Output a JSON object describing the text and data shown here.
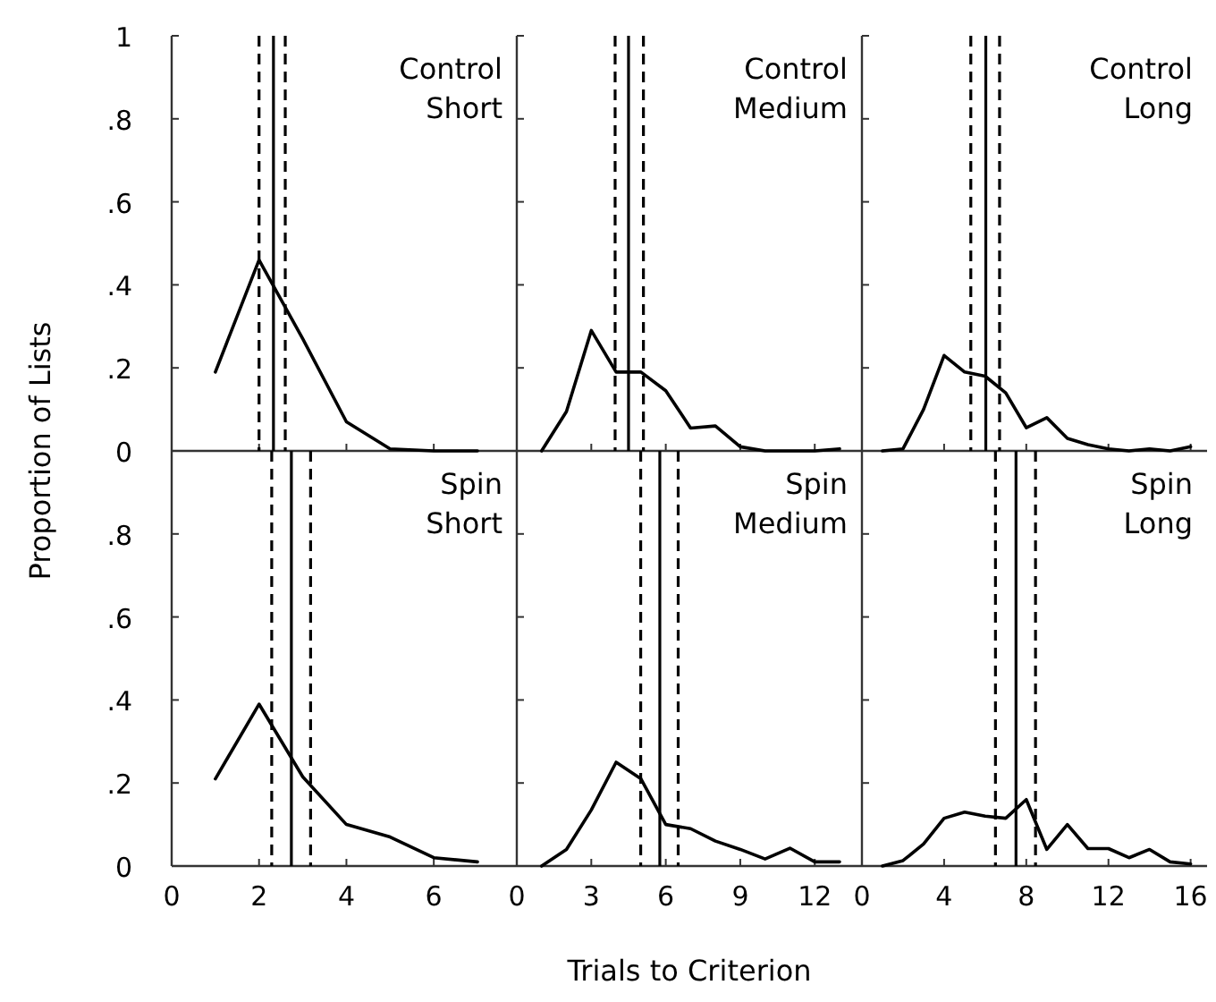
{
  "chart_data": [
    {
      "type": "line",
      "title": "Control",
      "subtitle": "Short",
      "x": [
        1,
        2,
        3,
        4,
        5,
        6,
        7
      ],
      "series": [
        {
          "color": "#000000",
          "values": [
            0.19,
            0.46,
            0.27,
            0.07,
            0.005,
            0,
            0
          ]
        }
      ],
      "xlim": [
        0,
        7.9
      ],
      "xticks": [
        {
          "value": 0,
          "label": null
        },
        {
          "value": 2,
          "label": null
        },
        {
          "value": 4,
          "label": null
        },
        {
          "value": 6,
          "label": null
        }
      ],
      "ylim": [
        0,
        1
      ],
      "yticks": [
        {
          "value": 0,
          "label": "0"
        },
        {
          "value": 0.2,
          "label": ".2"
        },
        {
          "value": 0.4,
          "label": ".4"
        },
        {
          "value": 0.6,
          "label": ".6"
        },
        {
          "value": 0.8,
          "label": ".8"
        },
        1
      ],
      "tick_labels": "y",
      "marker": "none",
      "line_style": "solid",
      "ref_lines": [
        {
          "axis": "x",
          "value": 2.0,
          "line_style": "dashed",
          "color": "#000000"
        },
        {
          "axis": "x",
          "value": 2.33,
          "line_style": "solid",
          "color": "#000000"
        },
        {
          "axis": "x",
          "value": 2.6,
          "line_style": "dashed",
          "color": "#000000"
        }
      ]
    },
    {
      "type": "line",
      "title": "Control",
      "subtitle": "Medium",
      "x": [
        1,
        2,
        3,
        4,
        5,
        6,
        7,
        8,
        9,
        10,
        11,
        12,
        13
      ],
      "series": [
        {
          "color": "#000000",
          "values": [
            0,
            0.095,
            0.29,
            0.19,
            0.19,
            0.145,
            0.055,
            0.06,
            0.01,
            0,
            0,
            0,
            0.005
          ]
        }
      ],
      "xlim": [
        0,
        13.9
      ],
      "xticks": [
        {
          "value": 0,
          "label": null
        },
        {
          "value": 3,
          "label": null
        },
        {
          "value": 6,
          "label": null
        },
        {
          "value": 9,
          "label": null
        },
        {
          "value": 12,
          "label": null
        }
      ],
      "ylim": [
        0,
        1
      ],
      "yticks": [
        {
          "value": 0.2,
          "label": null
        },
        {
          "value": 0.4,
          "label": null
        },
        {
          "value": 0.6,
          "label": null
        },
        {
          "value": 0.8,
          "label": null
        },
        {
          "value": 1,
          "label": null
        }
      ],
      "tick_labels": false,
      "marker": "none",
      "line_style": "solid",
      "ref_lines": [
        {
          "axis": "x",
          "value": 3.96,
          "line_style": "dashed",
          "color": "#000000"
        },
        {
          "axis": "x",
          "value": 4.5,
          "line_style": "solid",
          "color": "#000000"
        },
        {
          "axis": "x",
          "value": 5.1,
          "line_style": "dashed",
          "color": "#000000"
        }
      ]
    },
    {
      "type": "line",
      "title": "Control",
      "subtitle": "Long",
      "x": [
        1,
        2,
        3,
        4,
        5,
        6,
        7,
        8,
        9,
        10,
        11,
        12,
        13,
        14,
        15,
        16
      ],
      "series": [
        {
          "color": "#000000",
          "values": [
            0,
            0.005,
            0.1,
            0.23,
            0.19,
            0.18,
            0.14,
            0.056,
            0.08,
            0.03,
            0.015,
            0.005,
            0,
            0.005,
            0,
            0.01
          ]
        }
      ],
      "xlim": [
        0,
        16.8
      ],
      "xticks": [
        {
          "value": 0,
          "label": null
        },
        {
          "value": 4,
          "label": null
        },
        {
          "value": 8,
          "label": null
        },
        {
          "value": 12,
          "label": null
        },
        {
          "value": 16,
          "label": null
        }
      ],
      "ylim": [
        0,
        1
      ],
      "yticks": [
        {
          "value": 0.2,
          "label": null
        },
        {
          "value": 0.4,
          "label": null
        },
        {
          "value": 0.6,
          "label": null
        },
        {
          "value": 0.8,
          "label": null
        },
        {
          "value": 1,
          "label": null
        }
      ],
      "tick_labels": false,
      "marker": "none",
      "line_style": "solid",
      "ref_lines": [
        {
          "axis": "x",
          "value": 5.3,
          "line_style": "dashed",
          "color": "#000000"
        },
        {
          "axis": "x",
          "value": 6.03,
          "line_style": "solid",
          "color": "#000000"
        },
        {
          "axis": "x",
          "value": 6.7,
          "line_style": "dashed",
          "color": "#000000"
        }
      ]
    },
    {
      "type": "line",
      "title": "Spin",
      "subtitle": "Short",
      "ylabel": "Proportion of Lists",
      "x": [
        1,
        2,
        3,
        4,
        5,
        6,
        7
      ],
      "series": [
        {
          "color": "#000000",
          "values": [
            0.21,
            0.39,
            0.215,
            0.1,
            0.07,
            0.02,
            0.01
          ]
        }
      ],
      "xlim": [
        0,
        7.9
      ],
      "xticks": [
        0,
        2,
        4,
        6
      ],
      "ylim": [
        0,
        1
      ],
      "yticks": [
        0,
        {
          "value": 0.2,
          "label": ".2"
        },
        {
          "value": 0.4,
          "label": ".4"
        },
        {
          "value": 0.6,
          "label": ".6"
        },
        {
          "value": 0.8,
          "label": ".8"
        }
      ],
      "marker": "none",
      "line_style": "solid",
      "ref_lines": [
        {
          "axis": "x",
          "value": 2.29,
          "line_style": "dashed",
          "color": "#000000"
        },
        {
          "axis": "x",
          "value": 2.74,
          "line_style": "solid",
          "color": "#000000"
        },
        {
          "axis": "x",
          "value": 3.18,
          "line_style": "dashed",
          "color": "#000000"
        }
      ]
    },
    {
      "type": "line",
      "title": "Spin",
      "subtitle": "Medium",
      "xlabel": "Trials to Criterion",
      "x": [
        1,
        2,
        3,
        4,
        5,
        6,
        7,
        8,
        9,
        10,
        11,
        12,
        13
      ],
      "series": [
        {
          "color": "#000000",
          "values": [
            0,
            0.04,
            0.135,
            0.25,
            0.21,
            0.1,
            0.09,
            0.06,
            0.04,
            0.017,
            0.043,
            0.01,
            0.01
          ]
        }
      ],
      "xlim": [
        0,
        13.9
      ],
      "xticks": [
        0,
        3,
        6,
        9,
        12
      ],
      "ylim": [
        0,
        1
      ],
      "yticks": [
        {
          "value": 0.2,
          "label": null
        },
        {
          "value": 0.4,
          "label": null
        },
        {
          "value": 0.6,
          "label": null
        },
        {
          "value": 0.8,
          "label": null
        }
      ],
      "tick_labels": "x",
      "marker": "none",
      "line_style": "solid",
      "ref_lines": [
        {
          "axis": "x",
          "value": 4.99,
          "line_style": "dashed",
          "color": "#000000"
        },
        {
          "axis": "x",
          "value": 5.76,
          "line_style": "solid",
          "color": "#000000"
        },
        {
          "axis": "x",
          "value": 6.5,
          "line_style": "dashed",
          "color": "#000000"
        }
      ]
    },
    {
      "type": "line",
      "title": "Spin",
      "subtitle": "Long",
      "x": [
        1,
        2,
        3,
        4,
        5,
        6,
        7,
        8,
        9,
        10,
        11,
        12,
        13,
        14,
        15,
        16
      ],
      "series": [
        {
          "color": "#000000",
          "values": [
            0,
            0.013,
            0.053,
            0.115,
            0.13,
            0.12,
            0.115,
            0.16,
            0.04,
            0.1,
            0.042,
            0.042,
            0.02,
            0.04,
            0.01,
            0.005
          ]
        }
      ],
      "xlim": [
        0,
        16.8
      ],
      "xticks": [
        0,
        4,
        8,
        12,
        16
      ],
      "ylim": [
        0,
        1
      ],
      "yticks": [
        {
          "value": 0.2,
          "label": null
        },
        {
          "value": 0.4,
          "label": null
        },
        {
          "value": 0.6,
          "label": null
        },
        {
          "value": 0.8,
          "label": null
        }
      ],
      "tick_labels": "x",
      "marker": "none",
      "line_style": "solid",
      "ref_lines": [
        {
          "axis": "x",
          "value": 6.5,
          "line_style": "dashed",
          "color": "#000000"
        },
        {
          "axis": "x",
          "value": 7.5,
          "line_style": "solid",
          "color": "#000000"
        },
        {
          "axis": "x",
          "value": 8.45,
          "line_style": "dashed",
          "color": "#000000"
        }
      ]
    }
  ]
}
